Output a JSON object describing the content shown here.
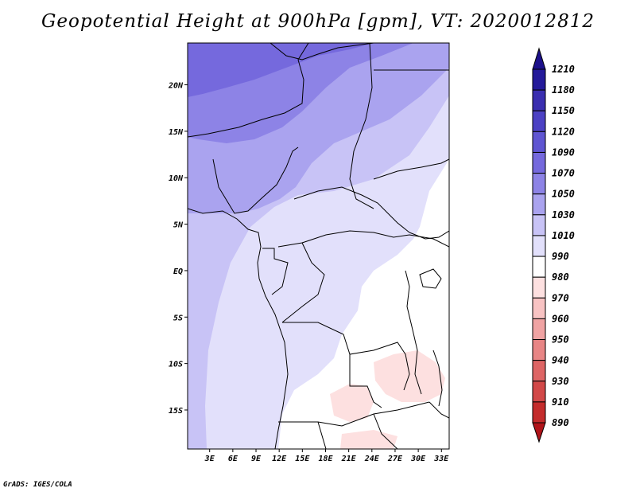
{
  "title": "Geopotential Height at 900hPa [gpm], VT: 2020012812",
  "footer": "GrADS: IGES/COLA",
  "map": {
    "variable": "Geopotential Height",
    "level": "900hPa",
    "units": "gpm",
    "valid_time": "2020012812",
    "lat_labels": [
      "20N",
      "15N",
      "10N",
      "5N",
      "EQ",
      "5S",
      "10S",
      "15S"
    ],
    "lat_values": [
      20,
      15,
      10,
      5,
      0,
      -5,
      -10,
      -15
    ],
    "lon_labels": [
      "3E",
      "6E",
      "9E",
      "12E",
      "15E",
      "18E",
      "21E",
      "24E",
      "27E",
      "30E",
      "33E"
    ],
    "lon_values": [
      3,
      6,
      9,
      12,
      15,
      18,
      21,
      24,
      27,
      30,
      33
    ]
  },
  "colorbar": {
    "levels": [
      "1210",
      "1180",
      "1150",
      "1120",
      "1090",
      "1070",
      "1050",
      "1030",
      "1010",
      "990",
      "980",
      "970",
      "960",
      "950",
      "940",
      "930",
      "910",
      "890"
    ],
    "colors": {
      "top_arrow": "#1c108a",
      "bottom_arrow": "#b0141a",
      "bands": [
        "#241a9a",
        "#3a2eb0",
        "#4c41c4",
        "#5f55d2",
        "#7569dd",
        "#8d83e6",
        "#aaa3ef",
        "#c8c3f6",
        "#e2e0fb",
        "#ffffff",
        "#fde0e0",
        "#f8c3c3",
        "#f0a3a3",
        "#e88585",
        "#de6565",
        "#d24848",
        "#c42c2c"
      ]
    }
  },
  "field_colors": {
    "z1090": "#7569dd",
    "z1070": "#8d83e6",
    "z1050": "#aaa3ef",
    "z1030": "#c8c3f6",
    "z1010": "#e2e0fb",
    "z990": "#ffffff",
    "z980": "#fde0e0",
    "border": "#000000"
  }
}
